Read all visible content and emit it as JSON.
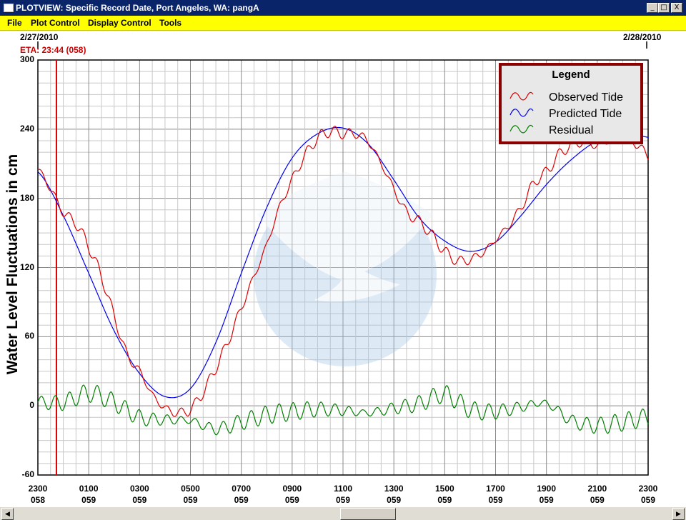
{
  "window": {
    "title": "PLOTVIEW: Specific Record Date, Port Angeles, WA: pangA",
    "buttons": {
      "minimize": "_",
      "maximize": "□",
      "close": "X"
    }
  },
  "menu": [
    "File",
    "Plot Control",
    "Display Control",
    "Tools"
  ],
  "header": {
    "start_date": "2/27/2010",
    "end_date": "2/28/2010",
    "eta": "ETA: 23:44 (058)"
  },
  "legend": {
    "title": "Legend",
    "items": [
      {
        "label": "Observed Tide",
        "color": "#dd0000"
      },
      {
        "label": "Predicted Tide",
        "color": "#0000ee"
      },
      {
        "label": "Residual",
        "color": "#008000"
      }
    ]
  },
  "chart_data": {
    "type": "line",
    "title": "",
    "ylabel": "Water Level Fluctuations in cm",
    "ylim": [
      -60,
      300
    ],
    "yticks": [
      300,
      240,
      180,
      120,
      60,
      0,
      -60
    ],
    "xlim": [
      0,
      24
    ],
    "xticks": [
      {
        "hour": 0,
        "l1": "2300",
        "l2": "058"
      },
      {
        "hour": 2,
        "l1": "0100",
        "l2": "059"
      },
      {
        "hour": 4,
        "l1": "0300",
        "l2": "059"
      },
      {
        "hour": 6,
        "l1": "0500",
        "l2": "059"
      },
      {
        "hour": 8,
        "l1": "0700",
        "l2": "059"
      },
      {
        "hour": 10,
        "l1": "0900",
        "l2": "059"
      },
      {
        "hour": 12,
        "l1": "1100",
        "l2": "059"
      },
      {
        "hour": 14,
        "l1": "1300",
        "l2": "059"
      },
      {
        "hour": 16,
        "l1": "1500",
        "l2": "059"
      },
      {
        "hour": 18,
        "l1": "1700",
        "l2": "059"
      },
      {
        "hour": 20,
        "l1": "1900",
        "l2": "059"
      },
      {
        "hour": 22,
        "l1": "2100",
        "l2": "059"
      },
      {
        "hour": 24,
        "l1": "2300",
        "l2": "059"
      }
    ],
    "eta_marker_hour": 0.73,
    "series": [
      {
        "name": "Predicted Tide",
        "color": "#0000ee",
        "x": [
          0,
          1,
          2,
          3,
          4,
          5,
          6,
          7,
          8,
          9,
          10,
          11,
          12,
          13,
          14,
          15,
          16,
          17,
          18,
          19,
          20,
          21,
          22,
          23,
          24
        ],
        "y": [
          203,
          165,
          115,
          65,
          28,
          8,
          15,
          55,
          115,
          172,
          215,
          236,
          241,
          227,
          196,
          163,
          143,
          134,
          142,
          165,
          192,
          214,
          230,
          237,
          233
        ]
      },
      {
        "name": "Observed Tide",
        "color": "#dd0000",
        "x": [
          0,
          0.5,
          1,
          1.5,
          2,
          2.5,
          3,
          3.5,
          4,
          4.5,
          5,
          5.5,
          6,
          6.5,
          7,
          7.5,
          8,
          8.5,
          9,
          9.5,
          10,
          10.5,
          11,
          11.5,
          12,
          12.5,
          13,
          13.5,
          14,
          14.5,
          15,
          15.5,
          16,
          16.5,
          17,
          17.5,
          18,
          18.5,
          19,
          19.5,
          20,
          20.5,
          21,
          21.5,
          22,
          22.5,
          23,
          23.5,
          24
        ],
        "y": [
          205,
          188,
          168,
          158,
          138,
          112,
          78,
          45,
          30,
          10,
          -2,
          -6,
          -3,
          12,
          33,
          57,
          85,
          112,
          140,
          172,
          196,
          217,
          232,
          238,
          236,
          236,
          229,
          210,
          188,
          168,
          160,
          148,
          134,
          126,
          127,
          133,
          144,
          156,
          172,
          193,
          203,
          218,
          226,
          229,
          226,
          230,
          233,
          228,
          217
        ]
      },
      {
        "name": "Residual",
        "color": "#008000",
        "x": [
          0,
          1,
          2,
          3,
          4,
          5,
          6,
          7,
          8,
          9,
          10,
          11,
          12,
          13,
          14,
          15,
          16,
          17,
          18,
          19,
          20,
          21,
          22,
          23,
          24
        ],
        "y": [
          3,
          3,
          11,
          3,
          -10,
          -12,
          -13,
          -20,
          -14,
          -8,
          -5,
          -3,
          -4,
          -6,
          -2,
          2,
          10,
          -3,
          -5,
          -1,
          2,
          -13,
          -17,
          -14,
          -10
        ]
      }
    ]
  }
}
